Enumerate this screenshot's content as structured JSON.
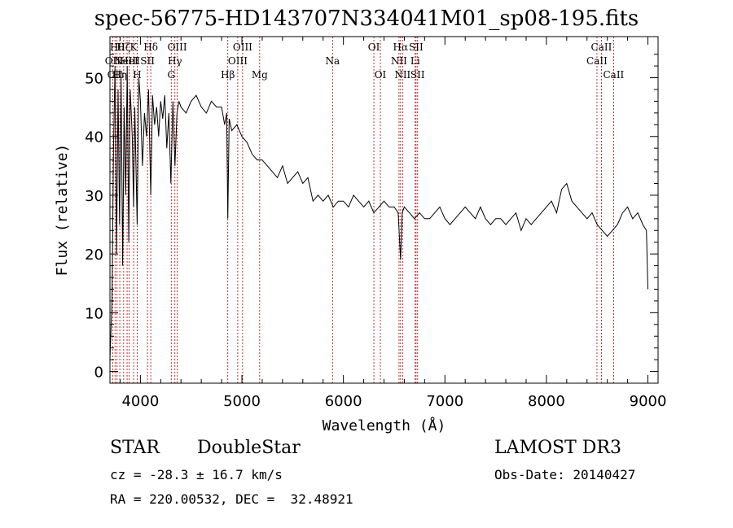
{
  "title": "spec-56775-HD143707N334041M01_sp08-195.fits",
  "chart_data": {
    "type": "line",
    "xlabel": "Wavelength (Å)",
    "ylabel": "Flux (relative)",
    "xlim": [
      3700,
      9100
    ],
    "ylim": [
      -2,
      57
    ],
    "xticks": [
      4000,
      5000,
      6000,
      7000,
      8000,
      9000
    ],
    "yticks": [
      0,
      10,
      20,
      30,
      40,
      50
    ],
    "line_color": "#000000",
    "marker_color": "#b00000",
    "spectrum": {
      "x": [
        3700,
        3720,
        3735,
        3750,
        3765,
        3780,
        3795,
        3810,
        3825,
        3840,
        3855,
        3870,
        3885,
        3900,
        3920,
        3933,
        3945,
        3968,
        3985,
        4000,
        4020,
        4040,
        4060,
        4080,
        4102,
        4120,
        4140,
        4160,
        4180,
        4200,
        4220,
        4240,
        4260,
        4280,
        4300,
        4320,
        4340,
        4360,
        4380,
        4400,
        4450,
        4500,
        4550,
        4600,
        4650,
        4700,
        4750,
        4800,
        4830,
        4850,
        4861,
        4875,
        4900,
        4950,
        5000,
        5050,
        5100,
        5150,
        5200,
        5250,
        5300,
        5350,
        5400,
        5450,
        5500,
        5550,
        5600,
        5650,
        5700,
        5750,
        5800,
        5850,
        5900,
        5950,
        6000,
        6050,
        6100,
        6150,
        6200,
        6250,
        6300,
        6350,
        6400,
        6450,
        6500,
        6540,
        6563,
        6580,
        6600,
        6650,
        6700,
        6750,
        6800,
        6850,
        6900,
        6950,
        7000,
        7050,
        7100,
        7150,
        7200,
        7250,
        7300,
        7350,
        7400,
        7450,
        7500,
        7550,
        7600,
        7650,
        7700,
        7750,
        7800,
        7850,
        7900,
        7950,
        8000,
        8050,
        8100,
        8150,
        8200,
        8250,
        8300,
        8350,
        8400,
        8450,
        8500,
        8550,
        8600,
        8650,
        8700,
        8750,
        8800,
        8850,
        8900,
        8950,
        8985,
        9000
      ],
      "y": [
        2,
        12,
        38,
        52,
        20,
        48,
        25,
        50,
        18,
        45,
        30,
        52,
        22,
        48,
        40,
        28,
        45,
        25,
        50,
        46,
        35,
        44,
        40,
        48,
        30,
        47,
        42,
        45,
        40,
        46,
        43,
        47,
        38,
        44,
        32,
        46,
        35,
        44,
        46,
        45,
        44,
        46,
        47,
        45,
        44,
        46,
        45,
        45,
        42,
        44,
        26,
        43,
        41,
        42,
        40,
        39,
        37,
        36,
        36,
        35,
        34,
        33,
        35,
        32,
        33,
        34,
        32,
        33,
        29,
        30,
        29,
        30,
        28,
        29,
        29,
        28,
        30,
        29,
        28,
        29,
        27,
        28,
        29,
        28,
        28,
        27,
        19,
        27,
        28,
        27,
        26,
        27,
        26,
        26,
        27,
        28,
        26,
        25,
        26,
        27,
        28,
        27,
        26,
        28,
        26,
        25,
        26,
        26,
        25,
        26,
        27,
        24,
        26,
        25,
        26,
        27,
        28,
        29,
        27,
        31,
        32,
        29,
        28,
        27,
        26,
        27,
        25,
        24,
        23,
        24,
        25,
        27,
        28,
        26,
        27,
        25,
        24,
        14
      ]
    },
    "lines": [
      {
        "x": 3727,
        "label": "OII",
        "row": 2
      },
      {
        "x": 3750,
        "label": "OII",
        "row": 3
      },
      {
        "x": 3770,
        "label": "Hθ",
        "row": 1
      },
      {
        "x": 3797,
        "label": "Hη",
        "row": 3
      },
      {
        "x": 3835,
        "label": "Hζ",
        "row": 1
      },
      {
        "x": 3869,
        "label": "NeIII",
        "row": 2
      },
      {
        "x": 3889,
        "label": "HeI",
        "row": 2
      },
      {
        "x": 3933,
        "label": "K",
        "row": 1
      },
      {
        "x": 3968,
        "label": "H",
        "row": 3
      },
      {
        "x": 4070,
        "label": "SII",
        "row": 2
      },
      {
        "x": 4102,
        "label": "Hδ",
        "row": 1
      },
      {
        "x": 4304,
        "label": "G",
        "row": 3
      },
      {
        "x": 4340,
        "label": "Hγ",
        "row": 2
      },
      {
        "x": 4363,
        "label": "OIII",
        "row": 1
      },
      {
        "x": 4861,
        "label": "Hβ",
        "row": 3
      },
      {
        "x": 4959,
        "label": "OIII",
        "row": 2
      },
      {
        "x": 5007,
        "label": "OIII",
        "row": 1
      },
      {
        "x": 5175,
        "label": "Mg",
        "row": 3
      },
      {
        "x": 5893,
        "label": "Na",
        "row": 2
      },
      {
        "x": 6300,
        "label": "OI",
        "row": 1
      },
      {
        "x": 6364,
        "label": "OI",
        "row": 3
      },
      {
        "x": 6548,
        "label": "NII",
        "row": 2
      },
      {
        "x": 6563,
        "label": "Hα",
        "row": 1
      },
      {
        "x": 6583,
        "label": "NII",
        "row": 3
      },
      {
        "x": 6707,
        "label": "Li",
        "row": 2
      },
      {
        "x": 6716,
        "label": "SII",
        "row": 1
      },
      {
        "x": 6731,
        "label": "SII",
        "row": 3
      },
      {
        "x": 8498,
        "label": "CaII",
        "row": 2
      },
      {
        "x": 8542,
        "label": "CaII",
        "row": 1
      },
      {
        "x": 8662,
        "label": "CaII",
        "row": 3
      }
    ]
  },
  "info": {
    "class": "STAR",
    "subclass": "DoubleStar",
    "survey": "LAMOST DR3",
    "redshift": "cz = -28.3 ± 16.7 km/s",
    "obsdate": "Obs-Date: 20140427",
    "coords": "RA = 220.00532, DEC =  32.48921"
  }
}
